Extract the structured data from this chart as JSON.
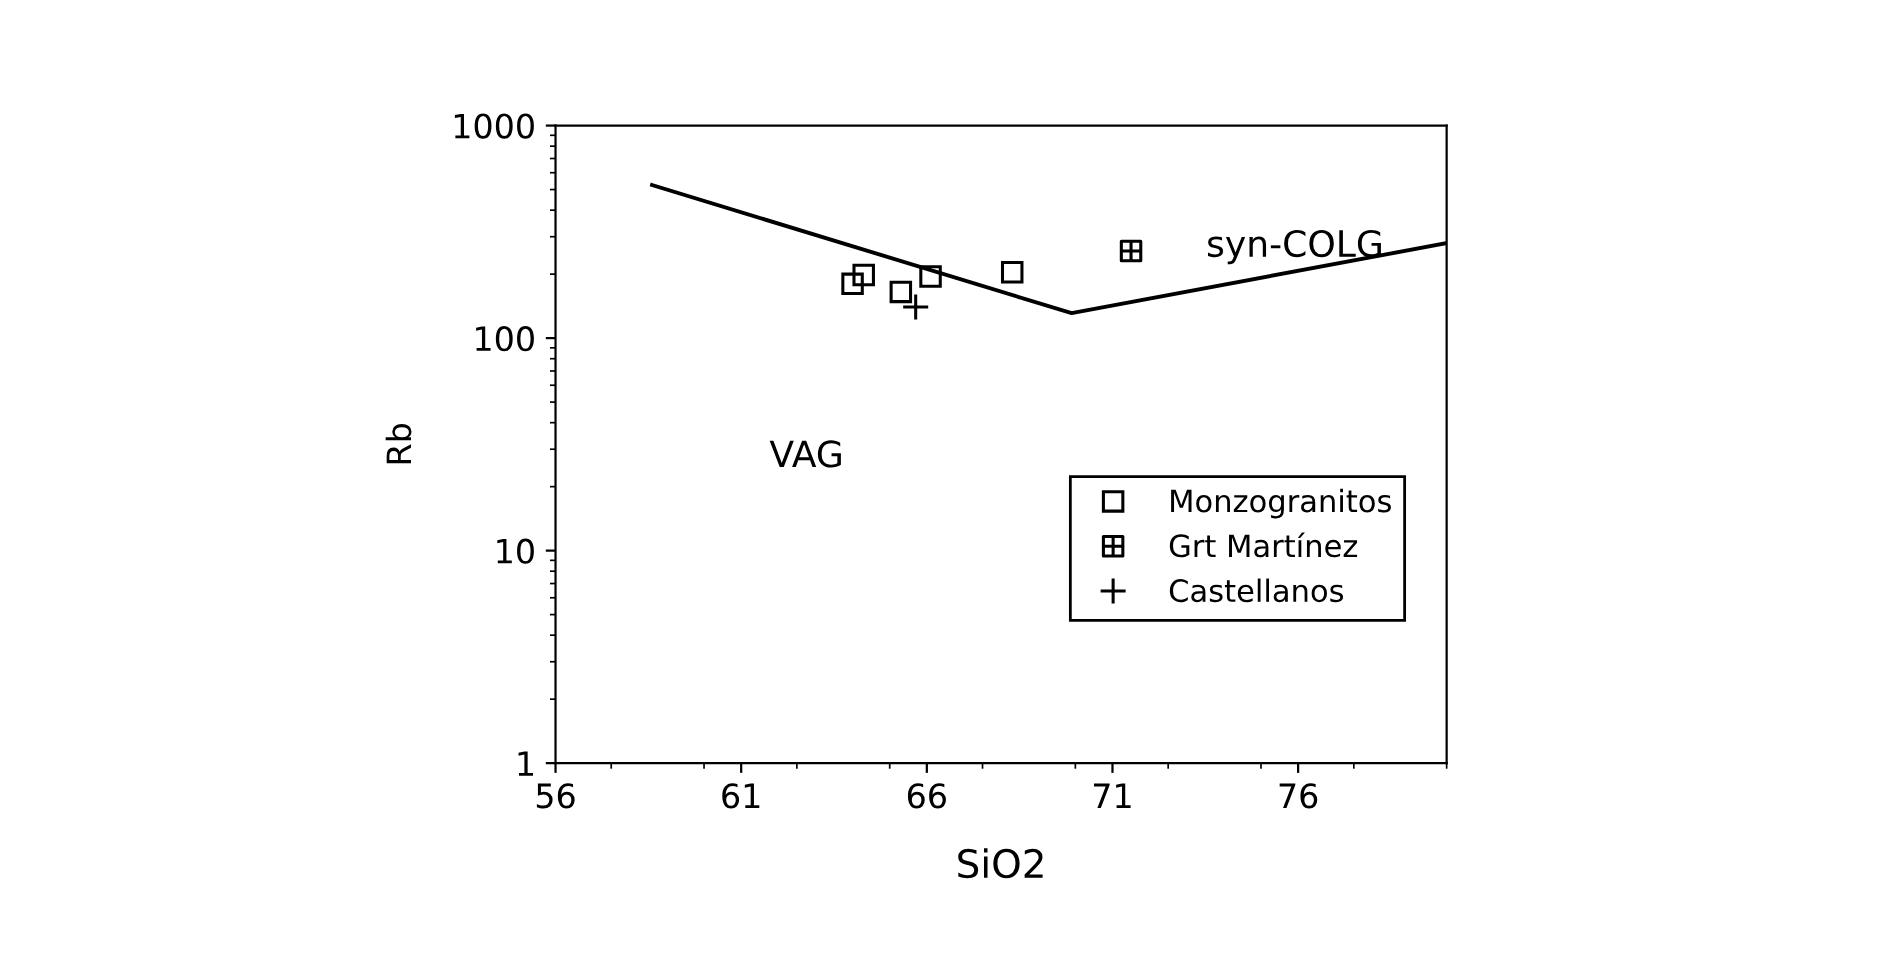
{
  "chart_data": {
    "type": "scatter",
    "xlabel": "SiO2",
    "ylabel": "Rb",
    "log": "y",
    "xlim": [
      56,
      80
    ],
    "xticks": [
      56,
      61,
      66,
      71,
      76
    ],
    "ylim": [
      1,
      1000
    ],
    "yticks": [
      1,
      10,
      100,
      1000
    ],
    "grid": false,
    "legend": "bottom right",
    "series": [
      {
        "name": "Monzogranitos",
        "marker": "square",
        "color": "#000000",
        "x": [
          64.0,
          64.3,
          65.3,
          66.1,
          68.3
        ],
        "values": [
          180,
          198,
          165,
          195,
          204
        ]
      },
      {
        "name": "Grt Martínez",
        "color": "#000000",
        "x": [
          71.5
        ],
        "values": [
          257
        ]
      },
      {
        "name": "Castellanos",
        "marker": "cross",
        "color": "#000000",
        "x": [
          65.7
        ],
        "values": [
          140
        ]
      },
      {
        "type": "line",
        "marker": "none",
        "color": "#000000",
        "x": [
          58.6,
          69.9,
          80
        ],
        "values": [
          525,
          131,
          280
        ]
      }
    ],
    "annotations": [
      "syn-COLG",
      "VAG"
    ]
  }
}
